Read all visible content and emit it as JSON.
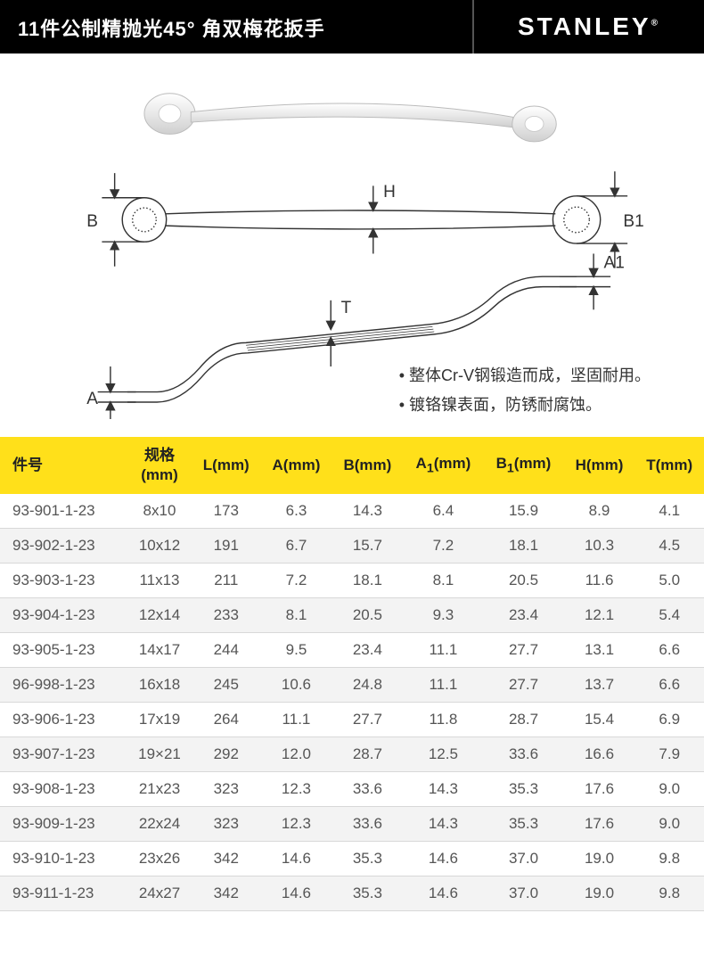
{
  "header": {
    "title": "11件公制精抛光45°   角双梅花扳手",
    "brand": "STANLEY"
  },
  "diagram": {
    "labels": {
      "B": "B",
      "B1": "B1",
      "H": "H",
      "A": "A",
      "A1": "A1",
      "T": "T"
    },
    "colors": {
      "stroke": "#333333",
      "wrench_fill": "#f5f5f5",
      "wrench_stroke": "#999999"
    }
  },
  "features": [
    "整体Cr-V钢锻造而成，坚固耐用。",
    "镀铬镍表面，防锈耐腐蚀。"
  ],
  "table": {
    "header_bg": "#ffe01a",
    "alt_row_bg": "#f3f3f3",
    "border_color": "#d8d8d8",
    "columns": [
      {
        "label": "件号"
      },
      {
        "label": "规格\n(mm)"
      },
      {
        "label": "L(mm)"
      },
      {
        "label": "A(mm)"
      },
      {
        "label": "B(mm)"
      },
      {
        "label": "A₁(mm)"
      },
      {
        "label": "B₁(mm)"
      },
      {
        "label": "H(mm)"
      },
      {
        "label": "T(mm)"
      }
    ],
    "rows": [
      [
        "93-901-1-23",
        "8x10",
        "173",
        "6.3",
        "14.3",
        "6.4",
        "15.9",
        "8.9",
        "4.1"
      ],
      [
        "93-902-1-23",
        "10x12",
        "191",
        "6.7",
        "15.7",
        "7.2",
        "18.1",
        "10.3",
        "4.5"
      ],
      [
        "93-903-1-23",
        "11x13",
        "211",
        "7.2",
        "18.1",
        "8.1",
        "20.5",
        "11.6",
        "5.0"
      ],
      [
        "93-904-1-23",
        "12x14",
        "233",
        "8.1",
        "20.5",
        "9.3",
        "23.4",
        "12.1",
        "5.4"
      ],
      [
        "93-905-1-23",
        "14x17",
        "244",
        "9.5",
        "23.4",
        "11.1",
        "27.7",
        "13.1",
        "6.6"
      ],
      [
        "96-998-1-23",
        "16x18",
        "245",
        "10.6",
        "24.8",
        "11.1",
        "27.7",
        "13.7",
        "6.6"
      ],
      [
        "93-906-1-23",
        "17x19",
        "264",
        "11.1",
        "27.7",
        "11.8",
        "28.7",
        "15.4",
        "6.9"
      ],
      [
        "93-907-1-23",
        "19×21",
        "292",
        "12.0",
        "28.7",
        "12.5",
        "33.6",
        "16.6",
        "7.9"
      ],
      [
        "93-908-1-23",
        "21x23",
        "323",
        "12.3",
        "33.6",
        "14.3",
        "35.3",
        "17.6",
        "9.0"
      ],
      [
        "93-909-1-23",
        "22x24",
        "323",
        "12.3",
        "33.6",
        "14.3",
        "35.3",
        "17.6",
        "9.0"
      ],
      [
        "93-910-1-23",
        "23x26",
        "342",
        "14.6",
        "35.3",
        "14.6",
        "37.0",
        "19.0",
        "9.8"
      ],
      [
        "93-911-1-23",
        "24x27",
        "342",
        "14.6",
        "35.3",
        "14.6",
        "37.0",
        "19.0",
        "9.8"
      ]
    ]
  }
}
